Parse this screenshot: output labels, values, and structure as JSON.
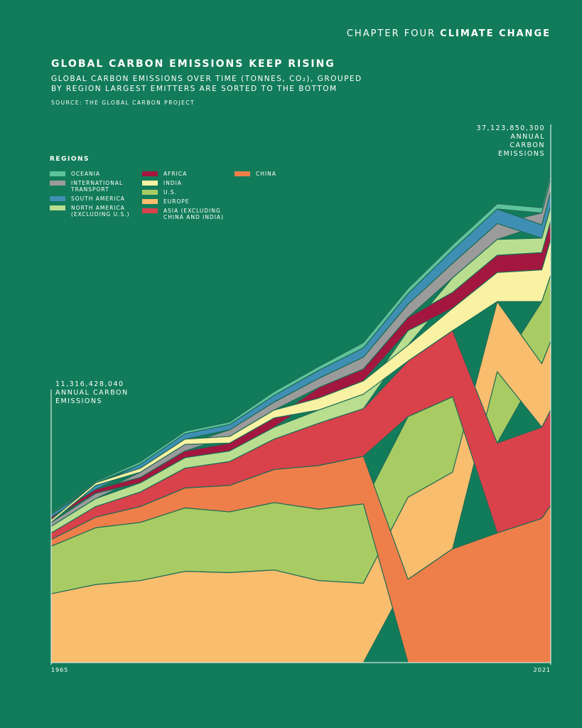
{
  "header": {
    "chapter": "CHAPTER FOUR",
    "section": "CLIMATE CHANGE"
  },
  "chart_data": {
    "type": "area",
    "title": "GLOBAL CARBON EMISSIONS KEEP RISING",
    "subtitle": "GLOBAL CARBON EMISSIONS OVER TIME (TONNES, CO₂), GROUPED BY REGION LARGEST EMITTERS ARE SORTED TO THE BOTTOM",
    "source": "SOURCE: THE GLOBAL CARBON PROJECT",
    "legend_title": "REGIONS",
    "stacked": true,
    "x": [
      1965,
      1970,
      1975,
      1980,
      1985,
      1990,
      1995,
      2000,
      2005,
      2010,
      2015,
      2020,
      2021
    ],
    "xlim": [
      1965,
      2021
    ],
    "xticks": [
      1965,
      2021
    ],
    "ylim": [
      0,
      40000000000
    ],
    "annotations": [
      {
        "label": "11,316,428,040",
        "text": "ANNUAL CARBON EMISSIONS"
      },
      {
        "label": "37,123,850,300",
        "text": "ANNUAL CARBON EMISSIONS"
      }
    ],
    "series": [
      {
        "name": "OCEANIA",
        "color": "#5cc39a",
        "values": [
          100000000,
          100000000,
          200000000,
          200000000,
          200000000,
          300000000,
          300000000,
          400000000,
          400000000,
          400000000,
          400000000,
          400000000,
          400000000
        ]
      },
      {
        "name": "INTERNATIONAL TRANSPORT",
        "color": "#9b9b9b",
        "values": [
          300000000,
          400000000,
          400000000,
          500000000,
          500000000,
          600000000,
          700000000,
          900000000,
          1000000000,
          1100000000,
          1200000000,
          900000000,
          1000000000
        ]
      },
      {
        "name": "SOUTH AMERICA",
        "color": "#3f8fb5",
        "values": [
          200000000,
          300000000,
          300000000,
          400000000,
          400000000,
          500000000,
          600000000,
          700000000,
          800000000,
          1000000000,
          1100000000,
          1000000000,
          1100000000
        ]
      },
      {
        "name": "NORTH AMERICA (EXCLUDING U.S.)",
        "color": "#b9de90",
        "values": [
          500000000,
          600000000,
          700000000,
          800000000,
          800000000,
          900000000,
          1000000000,
          1100000000,
          1100000000,
          1100000000,
          1200000000,
          1100000000,
          1100000000
        ]
      },
      {
        "name": "AFRICA",
        "color": "#a3173f",
        "values": [
          200000000,
          300000000,
          400000000,
          500000000,
          600000000,
          700000000,
          800000000,
          900000000,
          1000000000,
          1200000000,
          1300000000,
          1300000000,
          1400000000
        ]
      },
      {
        "name": "INDIA",
        "color": "#f8f2a2",
        "values": [
          200000000,
          200000000,
          300000000,
          400000000,
          500000000,
          600000000,
          900000000,
          1000000000,
          1200000000,
          1700000000,
          2200000000,
          2400000000,
          2700000000
        ]
      },
      {
        "name": "U.S.",
        "color": "#a8cc63",
        "values": [
          3600000000,
          4300000000,
          4400000000,
          4800000000,
          4600000000,
          5100000000,
          5400000000,
          6000000000,
          6100000000,
          5700000000,
          5400000000,
          4700000000,
          5000000000
        ]
      },
      {
        "name": "EUROPE",
        "color": "#f9bd6e",
        "values": [
          5200000000,
          5900000000,
          6200000000,
          6900000000,
          6800000000,
          7000000000,
          6200000000,
          6000000000,
          6200000000,
          5800000000,
          5300000000,
          4800000000,
          5200000000
        ]
      },
      {
        "name": "ASIA (EXCLUDING CHINA AND INDIA)",
        "color": "#d9414b",
        "values": [
          500000000,
          800000000,
          1100000000,
          1500000000,
          1800000000,
          2300000000,
          3200000000,
          3600000000,
          4200000000,
          5000000000,
          6800000000,
          6900000000,
          7200000000
        ]
      },
      {
        "name": "CHINA",
        "color": "#ef7f4a",
        "values": [
          500000000,
          800000000,
          1200000000,
          1500000000,
          2000000000,
          2500000000,
          3300000000,
          3600000000,
          6300000000,
          8600000000,
          9800000000,
          10900000000,
          11900000000
        ]
      }
    ]
  }
}
